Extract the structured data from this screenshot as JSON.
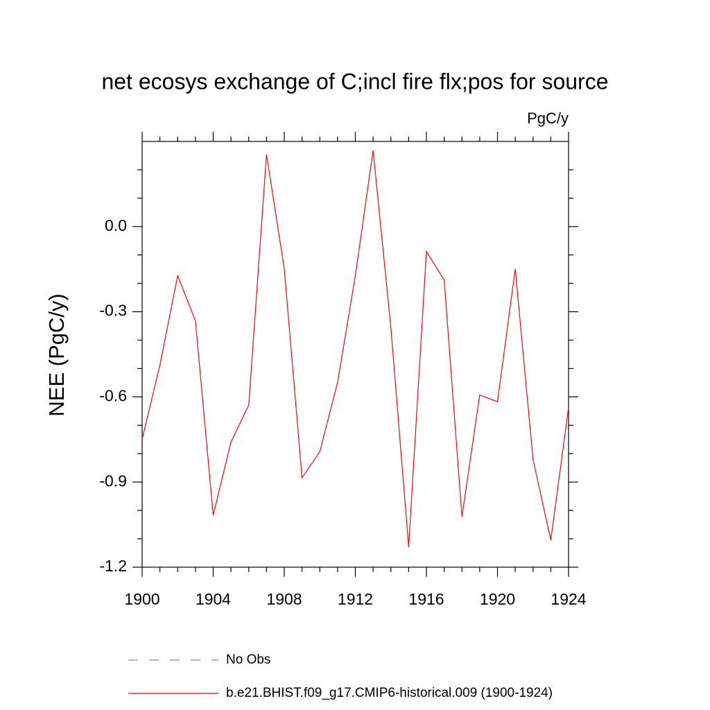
{
  "chart_data": {
    "type": "line",
    "title": "net ecosys exchange of C;incl fire flx;pos for source",
    "units_label": "PgC/y",
    "y_label": "NEE  (PgC/y)",
    "x": [
      1900,
      1901,
      1902,
      1903,
      1904,
      1905,
      1906,
      1907,
      1908,
      1909,
      1910,
      1911,
      1912,
      1913,
      1914,
      1915,
      1916,
      1917,
      1918,
      1919,
      1920,
      1921,
      1922,
      1923,
      1924
    ],
    "series": [
      {
        "name": "b.e21.BHIST.f09_g17.CMIP6-historical.009 (1900-1924)",
        "color": "#ff0000",
        "values": [
          -0.749,
          -0.488,
          -0.173,
          -0.332,
          -1.017,
          -0.759,
          -0.629,
          0.254,
          -0.149,
          -0.885,
          -0.793,
          -0.549,
          -0.173,
          0.268,
          -0.356,
          -1.129,
          -0.088,
          -0.188,
          -1.022,
          -0.593,
          -0.617,
          -0.149,
          -0.82,
          -1.105,
          -0.637
        ]
      }
    ],
    "legend_entries": [
      {
        "name": "No Obs",
        "color": "#8080c0",
        "dashed": true
      }
    ],
    "xlim": [
      1900,
      1924
    ],
    "xticks": [
      1900,
      1904,
      1908,
      1912,
      1916,
      1920,
      1924
    ],
    "xminorticks": [
      1901,
      1902,
      1903,
      1905,
      1906,
      1907,
      1909,
      1910,
      1911,
      1913,
      1914,
      1915,
      1917,
      1918,
      1919,
      1921,
      1922,
      1923
    ],
    "ylim": [
      -1.2,
      0.3
    ],
    "yticks": [
      -1.2,
      -0.9,
      -0.6,
      -0.3,
      {
        "value": 0,
        "label": "0.0"
      }
    ],
    "yminorticks": [
      -1.1,
      -1.0,
      -0.8,
      -0.7,
      -0.5,
      -0.4,
      -0.2,
      -0.1,
      0.1,
      0.2
    ]
  }
}
